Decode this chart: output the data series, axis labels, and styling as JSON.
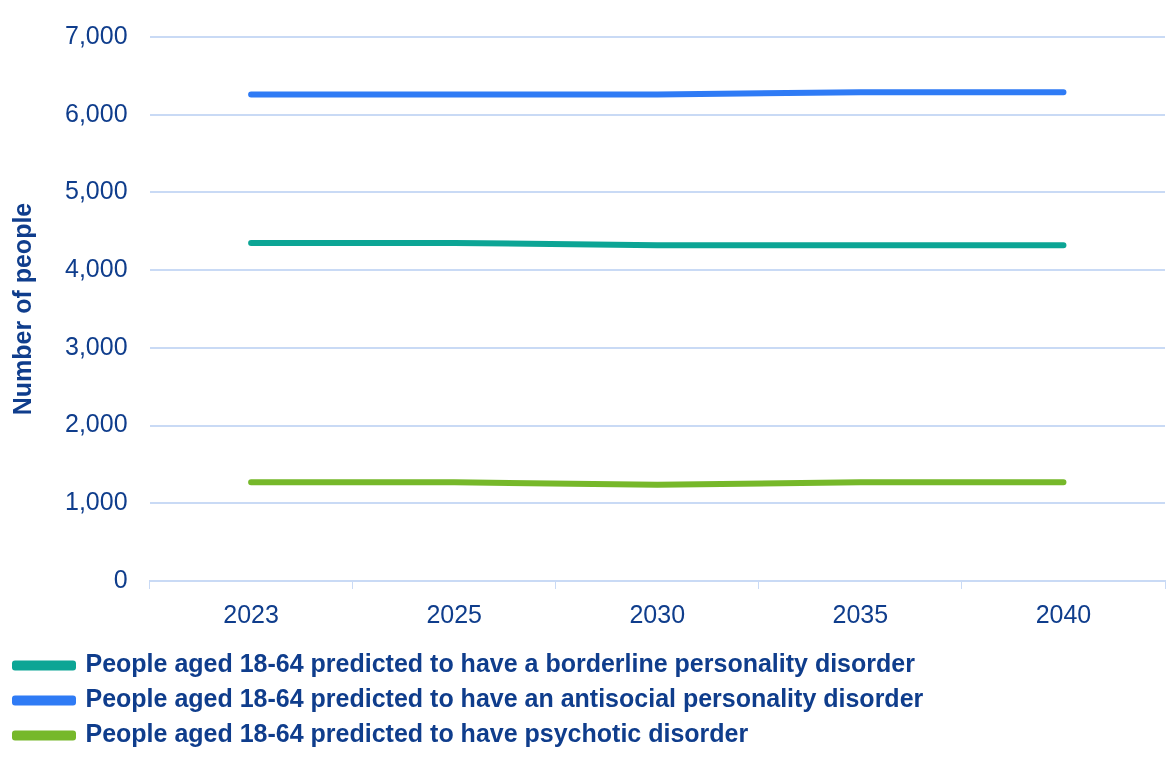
{
  "chart_data": {
    "type": "line",
    "ylabel": "Number of people",
    "categories": [
      "2023",
      "2025",
      "2030",
      "2035",
      "2040"
    ],
    "series": [
      {
        "name": "People aged 18-64 predicted to have a borderline personality disorder",
        "color": "#0ca595",
        "values": [
          4350,
          4350,
          4320,
          4320,
          4320
        ]
      },
      {
        "name": "People aged 18-64 predicted to have an antisocial personality disorder",
        "color": "#2f7bf5",
        "values": [
          6260,
          6260,
          6260,
          6290,
          6290
        ]
      },
      {
        "name": "People aged 18-64 predicted to have psychotic disorder",
        "color": "#76b82a",
        "values": [
          1270,
          1270,
          1240,
          1270,
          1270
        ]
      }
    ],
    "ylim": [
      0,
      7000
    ],
    "yticks": [
      0,
      {
        "value": 1000,
        "label": "1,000"
      },
      {
        "value": 2000,
        "label": "2,000"
      },
      {
        "value": 3000,
        "label": "3,000"
      },
      {
        "value": 4000,
        "label": "4,000"
      },
      {
        "value": 5000,
        "label": "5,000"
      },
      {
        "value": 6000,
        "label": "6,000"
      },
      {
        "value": 7000,
        "label": "7,000"
      }
    ],
    "grid": "y",
    "legend": "bottom",
    "marker": "none",
    "line_style": "solid"
  }
}
